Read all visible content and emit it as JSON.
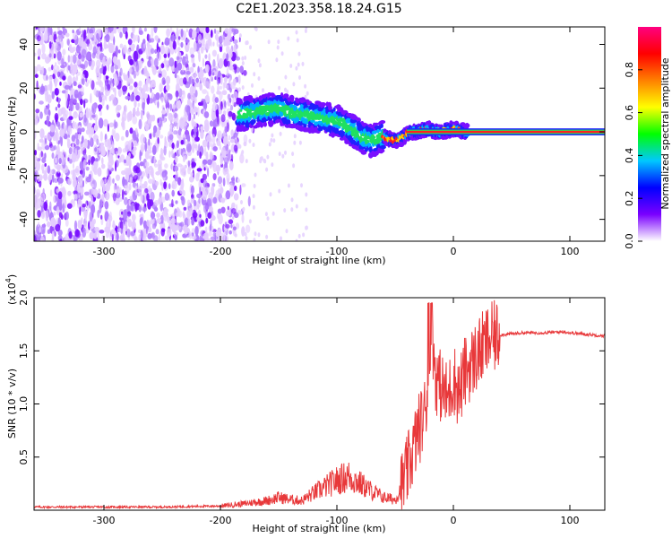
{
  "title": "C2E1.2023.358.18.24.G15",
  "chart_data": [
    {
      "type": "heatmap",
      "xlabel": "Height of straight line (km)",
      "ylabel": "Frequency (Hz)",
      "xlim": [
        -360,
        130
      ],
      "ylim": [
        -50,
        48
      ],
      "x_ticks": [
        -300,
        -200,
        -100,
        0,
        100
      ],
      "y_ticks": [
        -40,
        -20,
        0,
        20,
        40
      ],
      "colorbar": {
        "label": "Normalized spectral amplitude",
        "range": [
          0.0,
          1.0
        ],
        "ticks": [
          "0.0",
          "0.2",
          "0.4",
          "0.6",
          "0.8"
        ],
        "colors": [
          "#ffffff",
          "#7a00ff",
          "#0000ff",
          "#00c8ff",
          "#00ff00",
          "#ffff00",
          "#ff8000",
          "#ff0000",
          "#ff0080"
        ]
      },
      "ridge": {
        "x": [
          -180,
          -160,
          -150,
          -140,
          -120,
          -100,
          -90,
          -80,
          -70,
          -60,
          -50,
          -45,
          -40,
          -35,
          -30,
          -25,
          -20,
          -15,
          -10,
          -5,
          0,
          5,
          10,
          20,
          60,
          100,
          130
        ],
        "y": [
          8,
          10,
          11,
          9,
          7,
          5,
          2,
          -2,
          -4,
          -2,
          -4,
          -3,
          -1,
          0,
          0,
          1,
          1,
          0,
          0,
          1,
          1,
          1,
          0,
          0,
          0,
          0,
          0
        ]
      }
    },
    {
      "type": "line",
      "xlabel": "Height of straight line (km)",
      "ylabel": "SNR (10 * v/v)",
      "y_multiplier": "(x10",
      "y_multiplier_exp": "4",
      "y_multiplier_close": ")",
      "xlim": [
        -360,
        130
      ],
      "ylim": [
        0,
        2.0
      ],
      "x_ticks": [
        -300,
        -200,
        -100,
        0,
        100
      ],
      "y_ticks": [
        "0.5",
        "1.0",
        "1.5",
        "2.0"
      ],
      "series": [
        {
          "color": "#e8383a",
          "x": [
            -360,
            -300,
            -250,
            -200,
            -180,
            -160,
            -150,
            -140,
            -130,
            -120,
            -110,
            -100,
            -90,
            -80,
            -70,
            -60,
            -50,
            -45,
            -40,
            -35,
            -30,
            -25,
            -20,
            -18,
            -15,
            -10,
            -5,
            0,
            5,
            10,
            20,
            30,
            40,
            60,
            80,
            95,
            100,
            110,
            120,
            130
          ],
          "y": [
            0.03,
            0.03,
            0.03,
            0.04,
            0.06,
            0.09,
            0.12,
            0.1,
            0.09,
            0.16,
            0.22,
            0.28,
            0.32,
            0.25,
            0.18,
            0.12,
            0.1,
            0.2,
            0.35,
            0.55,
            0.75,
            0.9,
            1.3,
            1.65,
            1.25,
            1.15,
            1.05,
            1.25,
            1.1,
            1.3,
            1.45,
            1.6,
            1.65,
            1.67,
            1.67,
            1.68,
            1.67,
            1.66,
            1.65,
            1.64
          ]
        }
      ]
    }
  ]
}
